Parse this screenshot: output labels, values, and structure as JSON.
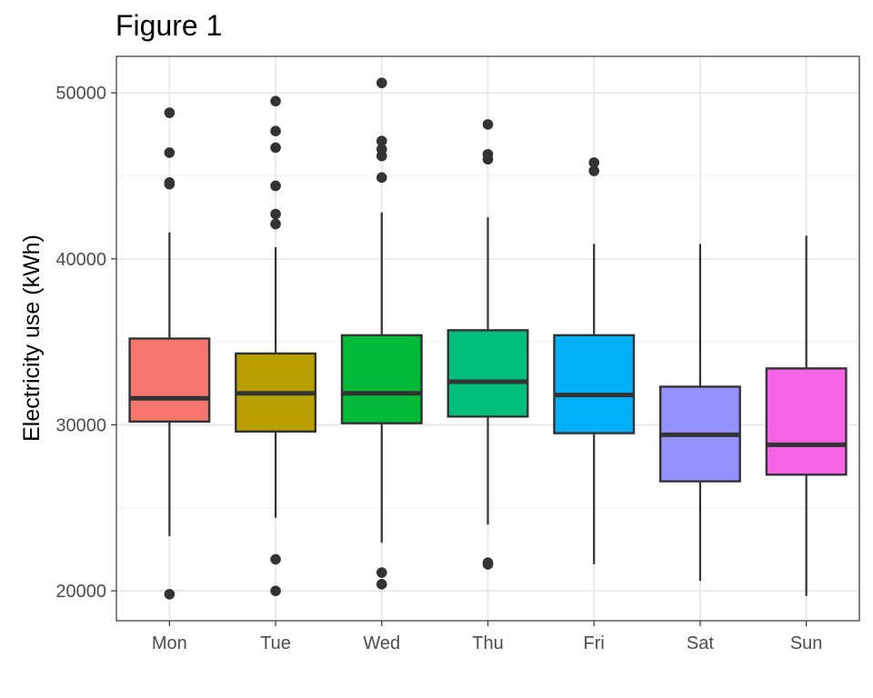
{
  "figure": {
    "title": "Figure 1"
  },
  "chart_data": {
    "type": "boxplot",
    "title": "Figure 1",
    "xlabel": "",
    "ylabel": "Electricity use (kWh)",
    "ylim": [
      18200,
      52200
    ],
    "yticks": [
      20000,
      30000,
      40000,
      50000
    ],
    "ytick_labels": [
      "20000",
      "30000",
      "40000",
      "50000"
    ],
    "y_minor_gridlines": [
      25000,
      35000,
      45000
    ],
    "grid": true,
    "categories": [
      "Mon",
      "Tue",
      "Wed",
      "Thu",
      "Fri",
      "Sat",
      "Sun"
    ],
    "boxes": [
      {
        "category": "Mon",
        "color": "#F8766D",
        "whisker_low": 23300,
        "q1": 30200,
        "median": 31600,
        "q3": 35200,
        "whisker_high": 41600,
        "outliers": [
          19800,
          44500,
          44600,
          46400,
          48800
        ]
      },
      {
        "category": "Tue",
        "color": "#B79F00",
        "whisker_low": 24400,
        "q1": 29600,
        "median": 31900,
        "q3": 34300,
        "whisker_high": 40700,
        "outliers": [
          20000,
          21900,
          42100,
          42700,
          44400,
          46700,
          47700,
          49500
        ]
      },
      {
        "category": "Wed",
        "color": "#00BA38",
        "whisker_low": 22900,
        "q1": 30100,
        "median": 31900,
        "q3": 35400,
        "whisker_high": 42800,
        "outliers": [
          20400,
          21100,
          44900,
          46200,
          46600,
          47100,
          50600
        ]
      },
      {
        "category": "Thu",
        "color": "#00BF7D",
        "whisker_low": 24000,
        "q1": 30500,
        "median": 32600,
        "q3": 35700,
        "whisker_high": 42500,
        "outliers": [
          21600,
          21700,
          46000,
          46300,
          48100
        ]
      },
      {
        "category": "Fri",
        "color": "#00B0F6",
        "whisker_low": 21600,
        "q1": 29500,
        "median": 31800,
        "q3": 35400,
        "whisker_high": 40900,
        "outliers": [
          45300,
          45800
        ]
      },
      {
        "category": "Sat",
        "color": "#9590FF",
        "whisker_low": 20600,
        "q1": 26600,
        "median": 29400,
        "q3": 32300,
        "whisker_high": 40900,
        "outliers": []
      },
      {
        "category": "Sun",
        "color": "#F564E3",
        "whisker_low": 19700,
        "q1": 27000,
        "median": 28800,
        "q3": 33400,
        "whisker_high": 41400,
        "outliers": []
      }
    ]
  },
  "colors": {
    "panel_border": "#333333",
    "grid_major": "#ebebeb",
    "grid_minor": "#f2f2f2",
    "box_outline": "#333333",
    "median_line": "#333333",
    "whisker": "#333333",
    "outlier": "#333333",
    "tick_label": "#4d4d4d"
  }
}
